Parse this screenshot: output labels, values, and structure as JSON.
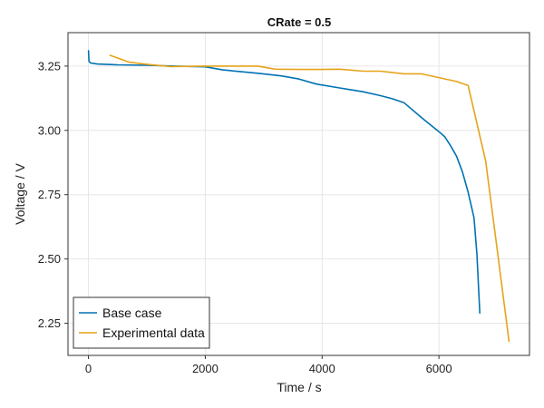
{
  "chart_data": {
    "type": "line",
    "title": "CRate = 0.5",
    "xlabel": "Time / s",
    "ylabel": "Voltage / V",
    "xlim": [
      -350,
      7550
    ],
    "ylim": [
      2.125,
      3.38
    ],
    "xticks": [
      0,
      2000,
      4000,
      6000
    ],
    "xtick_labels": [
      "0",
      "2000",
      "4000",
      "6000"
    ],
    "yticks": [
      2.25,
      2.5,
      2.75,
      3.0,
      3.25
    ],
    "ytick_labels": [
      "2.25",
      "2.50",
      "2.75",
      "3.00",
      "3.25"
    ],
    "grid": true,
    "legend_position": "bottom-left",
    "series": [
      {
        "name": "Base case",
        "color": "#0072b2",
        "x": [
          0,
          10,
          40,
          150,
          500,
          1000,
          1500,
          2000,
          2300,
          2900,
          3300,
          3600,
          3900,
          4300,
          4700,
          5000,
          5200,
          5400,
          5700,
          6000,
          6100,
          6200,
          6300,
          6400,
          6500,
          6600,
          6650,
          6700
        ],
        "y": [
          3.31,
          3.268,
          3.262,
          3.258,
          3.255,
          3.253,
          3.25,
          3.247,
          3.235,
          3.222,
          3.212,
          3.2,
          3.18,
          3.165,
          3.15,
          3.135,
          3.123,
          3.108,
          3.05,
          2.995,
          2.975,
          2.94,
          2.9,
          2.84,
          2.76,
          2.66,
          2.52,
          2.29
        ]
      },
      {
        "name": "Experimental data",
        "color": "#e6a31a",
        "x": [
          370,
          700,
          1000,
          1400,
          2000,
          2500,
          2900,
          3200,
          3600,
          4000,
          4300,
          4700,
          5000,
          5400,
          5700,
          6000,
          6300,
          6500,
          6800,
          7000,
          7200
        ],
        "y": [
          3.292,
          3.265,
          3.257,
          3.248,
          3.25,
          3.25,
          3.25,
          3.238,
          3.237,
          3.237,
          3.238,
          3.23,
          3.23,
          3.22,
          3.22,
          3.205,
          3.19,
          3.175,
          2.88,
          2.53,
          2.18
        ]
      }
    ]
  }
}
